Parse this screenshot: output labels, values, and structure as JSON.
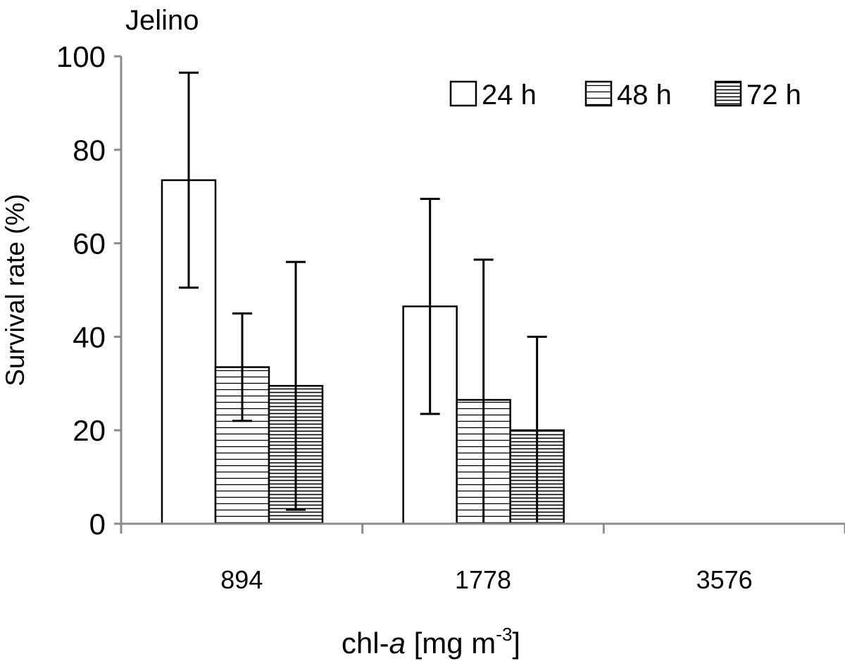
{
  "chart_data": {
    "type": "bar",
    "title": "Jelino",
    "xlabel_parts": {
      "prefix": "chl-",
      "italic": "a",
      "suffix": " [mg m",
      "superscript": "-3",
      "close": "]"
    },
    "ylabel": "Survival rate (%)",
    "categories": [
      "894",
      "1778",
      "3576"
    ],
    "ylim": [
      0,
      100
    ],
    "yticks": [
      "0",
      "20",
      "40",
      "60",
      "80",
      "100"
    ],
    "legend_position": "top-right",
    "series": [
      {
        "name": "24 h",
        "pattern": "none",
        "values": [
          73.5,
          46.5,
          0
        ],
        "errors": [
          23,
          23,
          0
        ]
      },
      {
        "name": "48 h",
        "pattern": "sparse",
        "values": [
          33.5,
          26.5,
          0
        ],
        "errors": [
          11.5,
          30,
          0
        ]
      },
      {
        "name": "72 h",
        "pattern": "dense",
        "values": [
          29.5,
          20,
          0
        ],
        "errors": [
          26.5,
          20,
          0
        ]
      }
    ],
    "colors": {
      "axis": "#8c8c8c",
      "bar_stroke": "#000000",
      "bar_fill": "#ffffff",
      "hatch": "#000000"
    }
  }
}
